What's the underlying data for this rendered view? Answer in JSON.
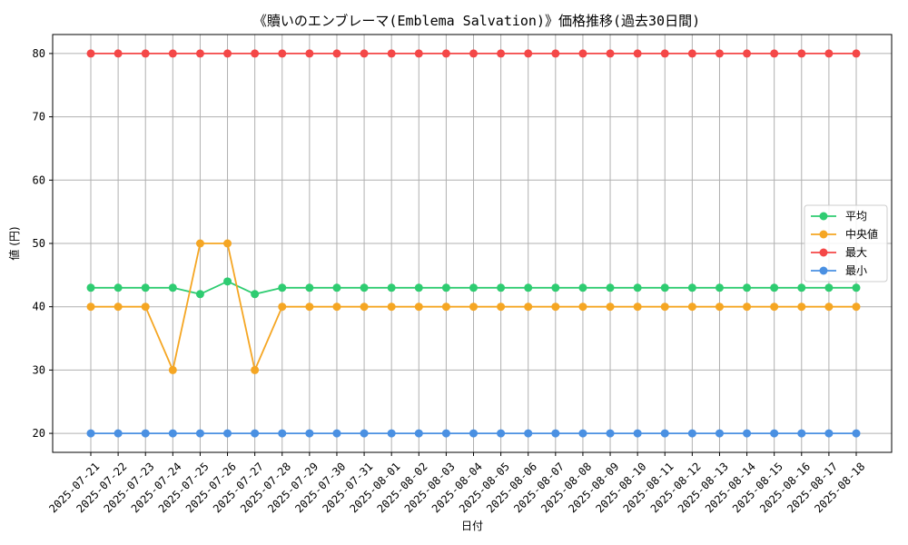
{
  "chart_data": {
    "type": "line",
    "title": "《贖いのエンブレーマ(Emblema Salvation)》価格推移(過去30日間)",
    "xlabel": "日付",
    "ylabel": "値 (円)",
    "ylim": [
      17,
      83
    ],
    "yticks": [
      20,
      30,
      40,
      50,
      60,
      70,
      80
    ],
    "grid": true,
    "legend_position": "right",
    "x": [
      "2025-07-21",
      "2025-07-22",
      "2025-07-23",
      "2025-07-24",
      "2025-07-25",
      "2025-07-26",
      "2025-07-27",
      "2025-07-28",
      "2025-07-29",
      "2025-07-30",
      "2025-07-31",
      "2025-08-01",
      "2025-08-02",
      "2025-08-03",
      "2025-08-04",
      "2025-08-05",
      "2025-08-06",
      "2025-08-07",
      "2025-08-08",
      "2025-08-09",
      "2025-08-10",
      "2025-08-11",
      "2025-08-12",
      "2025-08-13",
      "2025-08-14",
      "2025-08-15",
      "2025-08-16",
      "2025-08-17",
      "2025-08-18"
    ],
    "series": [
      {
        "name": "平均",
        "color": "#2ecc71",
        "values": [
          43,
          43,
          43,
          43,
          42,
          44,
          42,
          43,
          43,
          43,
          43,
          43,
          43,
          43,
          43,
          43,
          43,
          43,
          43,
          43,
          43,
          43,
          43,
          43,
          43,
          43,
          43,
          43,
          43
        ]
      },
      {
        "name": "中央値",
        "color": "#f5a623",
        "values": [
          40,
          40,
          40,
          30,
          50,
          50,
          30,
          40,
          40,
          40,
          40,
          40,
          40,
          40,
          40,
          40,
          40,
          40,
          40,
          40,
          40,
          40,
          40,
          40,
          40,
          40,
          40,
          40,
          40
        ]
      },
      {
        "name": "最大",
        "color": "#f44747",
        "values": [
          80,
          80,
          80,
          80,
          80,
          80,
          80,
          80,
          80,
          80,
          80,
          80,
          80,
          80,
          80,
          80,
          80,
          80,
          80,
          80,
          80,
          80,
          80,
          80,
          80,
          80,
          80,
          80,
          80
        ]
      },
      {
        "name": "最小",
        "color": "#4a90e2",
        "values": [
          20,
          20,
          20,
          20,
          20,
          20,
          20,
          20,
          20,
          20,
          20,
          20,
          20,
          20,
          20,
          20,
          20,
          20,
          20,
          20,
          20,
          20,
          20,
          20,
          20,
          20,
          20,
          20,
          20
        ]
      }
    ]
  }
}
